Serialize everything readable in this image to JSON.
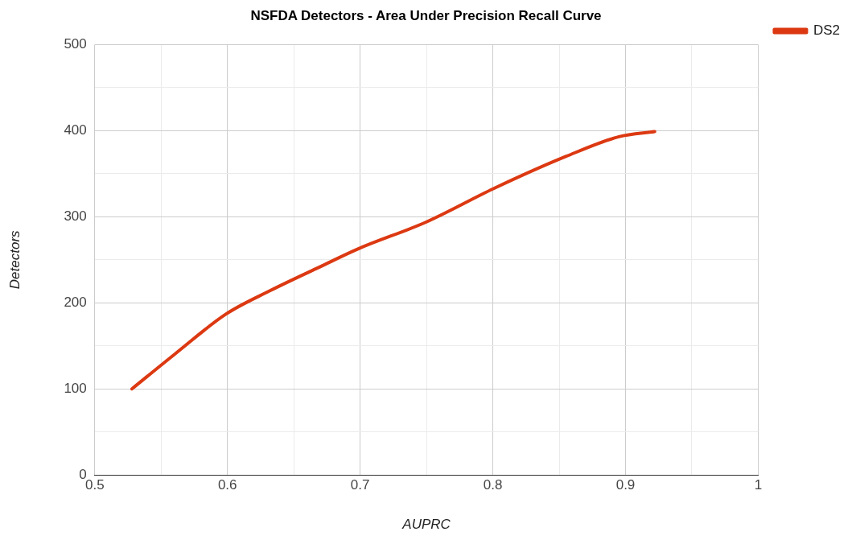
{
  "chart_data": {
    "type": "line",
    "title": "NSFDA Detectors - Area Under Precision Recall Curve",
    "xlabel": "AUPRC",
    "ylabel": "Detectors",
    "x": [
      0.528,
      0.56,
      0.599,
      0.632,
      0.67,
      0.699,
      0.75,
      0.801,
      0.855,
      0.895,
      0.922
    ],
    "series": [
      {
        "name": "DS2",
        "color": "#dc3912",
        "values": [
          100,
          140,
          187,
          214,
          242,
          263,
          294,
          333,
          370,
          393,
          399
        ]
      }
    ],
    "xlim": [
      0.5,
      1
    ],
    "xticks": [
      0.5,
      {
        "value": 0.55,
        "label": null
      },
      0.6,
      {
        "value": 0.65,
        "label": null
      },
      0.7,
      {
        "value": 0.75,
        "label": null
      },
      0.8,
      {
        "value": 0.85,
        "label": null
      },
      0.9,
      {
        "value": 0.95,
        "label": null
      },
      1
    ],
    "ylim": [
      0,
      500
    ],
    "yticks": [
      0,
      {
        "value": 50,
        "label": null
      },
      100,
      {
        "value": 150,
        "label": null
      },
      200,
      {
        "value": 250,
        "label": null
      },
      300,
      {
        "value": 350,
        "label": null
      },
      400,
      {
        "value": 450,
        "label": null
      },
      500
    ],
    "grid": true,
    "legend": "top right",
    "marker": "none",
    "line_style": "solid"
  }
}
